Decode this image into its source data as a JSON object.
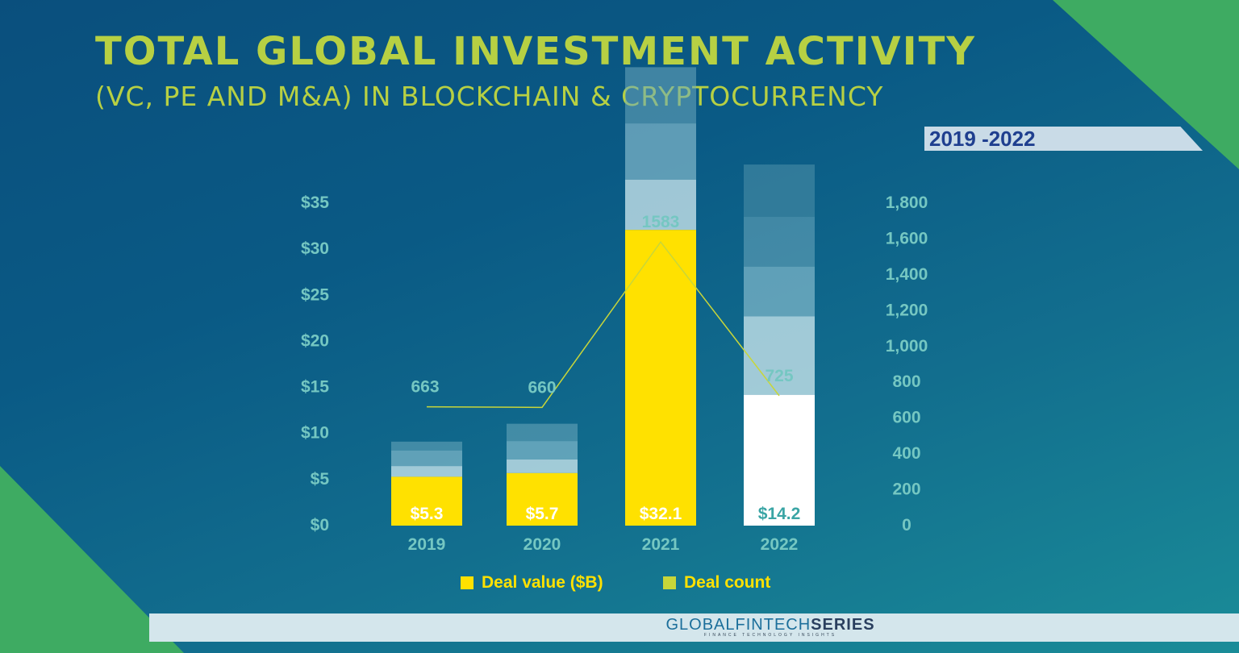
{
  "header": {
    "title": "TOTAL GLOBAL INVESTMENT ACTIVITY",
    "subtitle": "(VC, PE AND M&A) IN BLOCKCHAIN & CRYPTOCURRENCY",
    "period": "2019 -2022"
  },
  "footer": {
    "brand_prefix": "GLOBALFINTECH",
    "brand_suffix": "SERIES",
    "brand_tagline": "FINANCE TECHNOLOGY INSIGHTS"
  },
  "colors": {
    "title": "#b7d043",
    "deal_value": "#ffe100",
    "deal_count_line": "#c8d63a",
    "axis_text": "#75c7c2",
    "corner_green": "#3eab62"
  },
  "chart_data": {
    "type": "bar",
    "categories": [
      "2019",
      "2020",
      "2021",
      "2022"
    ],
    "series": [
      {
        "name": "Deal value ($B)",
        "type": "bar",
        "axis": "left",
        "values": [
          5.3,
          5.7,
          32.1,
          14.2
        ],
        "labels": [
          "$5.3",
          "$5.7",
          "$32.1",
          "$14.2"
        ]
      },
      {
        "name": "Deal count",
        "type": "line",
        "axis": "right",
        "values": [
          663,
          660,
          1583,
          725
        ],
        "labels": [
          "663",
          "660",
          "1583",
          "725"
        ]
      }
    ],
    "y_left": {
      "ticks": [
        "$0",
        "$5",
        "$10",
        "$15",
        "$20",
        "$25",
        "$30",
        "$35"
      ],
      "ylim": [
        0,
        35
      ]
    },
    "y_right": {
      "ticks": [
        "0",
        "200",
        "400",
        "600",
        "800",
        "1,000",
        "1,200",
        "1,400",
        "1,600",
        "1,800"
      ],
      "ylim": [
        0,
        1800
      ]
    },
    "legend": [
      {
        "label": "Deal value ($B)",
        "color": "#ffe100"
      },
      {
        "label": "Deal count",
        "color": "#c8d63a"
      }
    ],
    "legend_position": "bottom",
    "grid": false
  }
}
